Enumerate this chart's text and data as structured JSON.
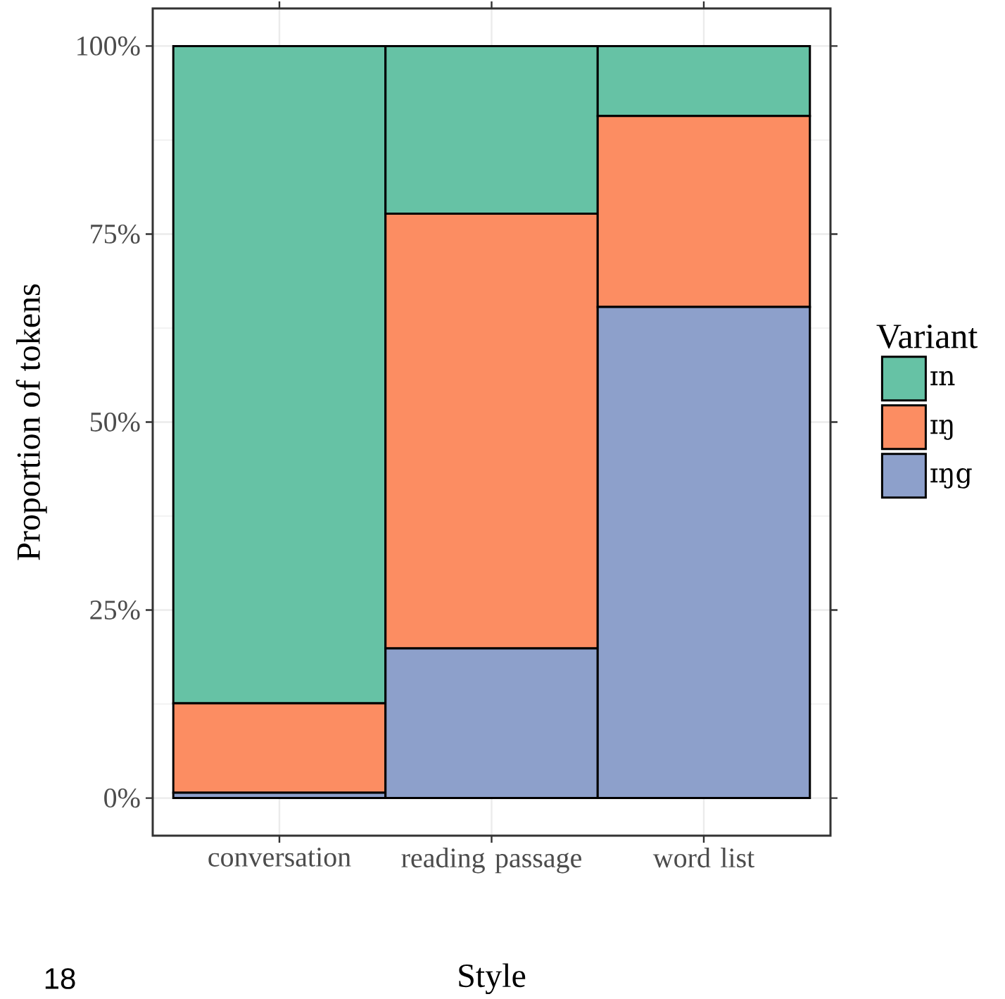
{
  "chart_data": {
    "type": "bar",
    "stacked": true,
    "xlabel": "Style",
    "ylabel": "Proportion of tokens",
    "legend_title": "Variant",
    "categories": [
      "conversation",
      "reading passage",
      "word list"
    ],
    "series": [
      {
        "name": "ɪŋg",
        "color": "#8da0cb",
        "values": [
          0.7,
          19.9,
          65.3
        ]
      },
      {
        "name": "ɪŋ",
        "color": "#fc8d62",
        "values": [
          11.9,
          57.8,
          25.4
        ]
      },
      {
        "name": "ɪn",
        "color": "#66c2a5",
        "values": [
          87.4,
          22.3,
          9.3
        ]
      }
    ],
    "ylim": [
      -5,
      105
    ],
    "yticks": [
      {
        "value": 0,
        "label": "0%"
      },
      {
        "value": 25,
        "label": "25%"
      },
      {
        "value": 50,
        "label": "50%"
      },
      {
        "value": 75,
        "label": "75%"
      },
      {
        "value": 100,
        "label": "100%"
      }
    ],
    "grid": true,
    "legend": "right",
    "annotations": [
      "18"
    ]
  }
}
